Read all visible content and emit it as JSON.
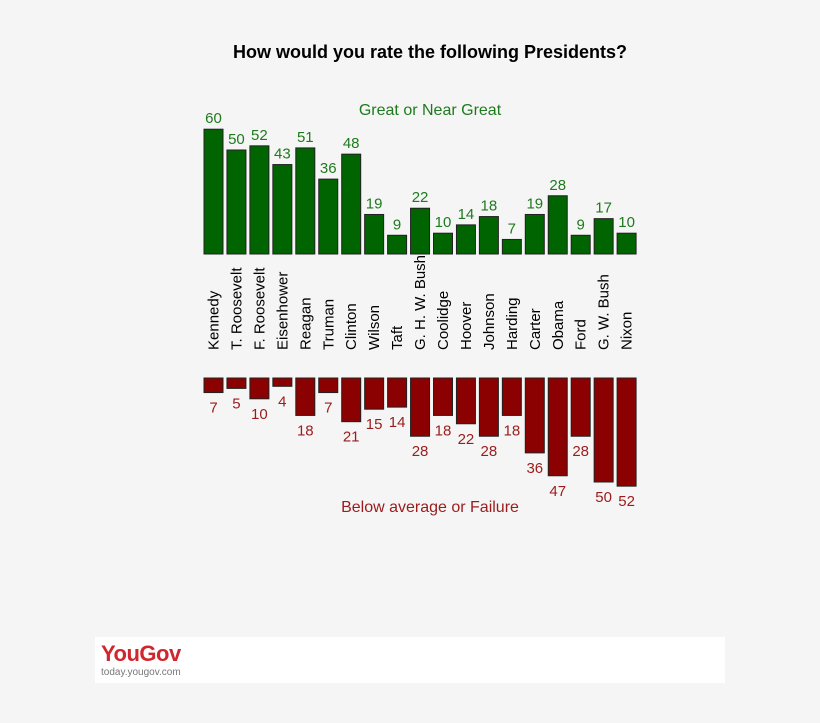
{
  "chart_data": {
    "type": "bar",
    "title": "How would you rate the following Presidents?",
    "categories": [
      "Kennedy",
      "T. Roosevelt",
      "F. Roosevelt",
      "Eisenhower",
      "Reagan",
      "Truman",
      "Clinton",
      "Wilson",
      "Taft",
      "G. H. W. Bush",
      "Coolidge",
      "Hoover",
      "Johnson",
      "Harding",
      "Carter",
      "Obama",
      "Ford",
      "G. W. Bush",
      "Nixon"
    ],
    "series": [
      {
        "name": "Great or Near Great",
        "color": "#006400",
        "values": [
          60,
          50,
          52,
          43,
          51,
          36,
          48,
          19,
          9,
          22,
          10,
          14,
          18,
          7,
          19,
          28,
          9,
          17,
          10
        ]
      },
      {
        "name": "Below average or Failure",
        "color": "#8b0000",
        "values": [
          7,
          5,
          10,
          4,
          18,
          7,
          21,
          15,
          14,
          28,
          18,
          22,
          28,
          18,
          36,
          47,
          28,
          50,
          52
        ]
      }
    ],
    "grid": false
  },
  "footer": {
    "logo": "YouGov",
    "url": "today.yougov.com"
  }
}
